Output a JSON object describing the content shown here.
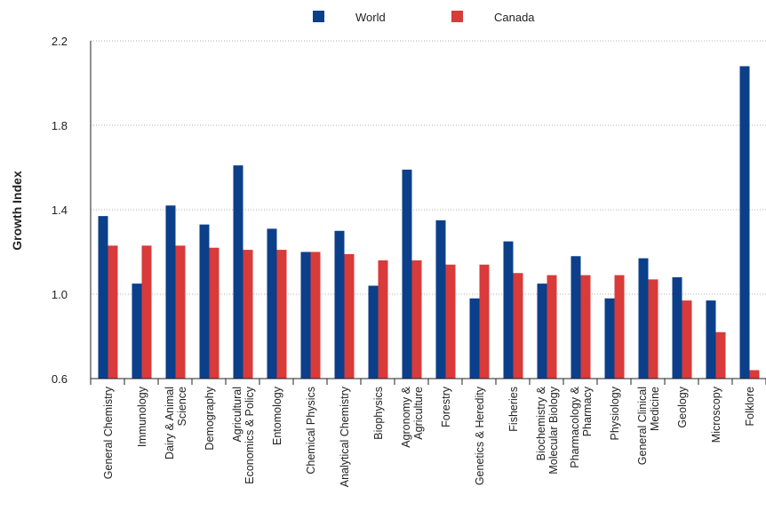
{
  "chart_data": {
    "type": "bar",
    "title": "",
    "xlabel": "",
    "ylabel": "Growth Index",
    "ylim": [
      0.6,
      2.2
    ],
    "yticks": [
      "0.6",
      "1.0",
      "1.4",
      "1.8",
      "2.2"
    ],
    "ytick_values": [
      0.6,
      1.0,
      1.4,
      1.8,
      2.2
    ],
    "grid": "horizontal",
    "legend_position": "top",
    "categories": [
      [
        "General Chemistry"
      ],
      [
        "Immunology"
      ],
      [
        "Dairy & Animal",
        "Science"
      ],
      [
        "Demography"
      ],
      [
        "Agricultural",
        "Economics & Policy"
      ],
      [
        "Entomology"
      ],
      [
        "Chemical Physics"
      ],
      [
        "Analytical Chemistry"
      ],
      [
        "Biophysics"
      ],
      [
        "Agronomy &",
        "Agriculture"
      ],
      [
        "Forestry"
      ],
      [
        "Genetics & Heredity"
      ],
      [
        "Fisheries"
      ],
      [
        "Biochemistry &",
        "Molecular Biology"
      ],
      [
        "Pharmacology &",
        "Pharmacy"
      ],
      [
        "Physiology"
      ],
      [
        "General Clinical",
        "Medicine"
      ],
      [
        "Geology"
      ],
      [
        "Microscopy"
      ],
      [
        "Folklore"
      ]
    ],
    "series": [
      {
        "name": "World",
        "color": "#0b3f8a",
        "values": [
          1.37,
          1.05,
          1.42,
          1.33,
          1.61,
          1.31,
          1.2,
          1.3,
          1.04,
          1.59,
          1.35,
          0.98,
          1.25,
          1.05,
          1.18,
          0.98,
          1.17,
          1.08,
          0.97,
          2.08
        ]
      },
      {
        "name": "Canada",
        "color": "#d93a3a",
        "values": [
          1.23,
          1.23,
          1.23,
          1.22,
          1.21,
          1.21,
          1.2,
          1.19,
          1.16,
          1.16,
          1.14,
          1.14,
          1.1,
          1.09,
          1.09,
          1.09,
          1.07,
          0.97,
          0.82,
          0.64
        ]
      }
    ]
  }
}
